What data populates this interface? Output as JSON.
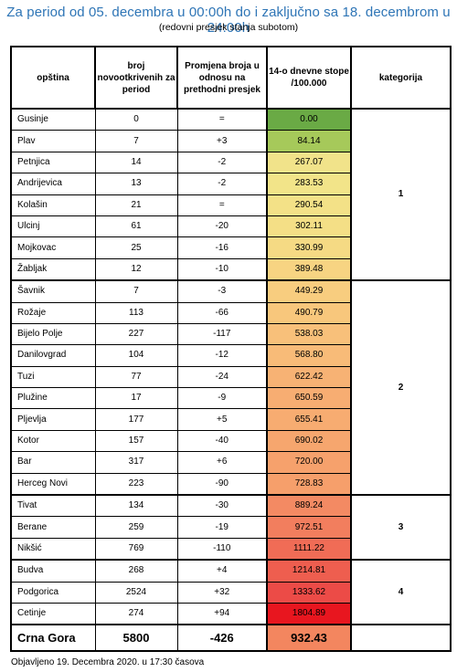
{
  "header": {
    "title": "Za period od 05. decembra u 00:00h do i zaključno sa 18. decembrom u 24:00h",
    "subtitle": "(redovni presjek stanja subotom)"
  },
  "columns": {
    "municipality": "opština",
    "new_cases": "broj novootkrivenih za period",
    "change": "Promjena broja u odnosu na prethodni presjek",
    "rate": "14-o dnevne stope /100.000",
    "category": "kategorija"
  },
  "groups": [
    {
      "category": "1",
      "rows": [
        {
          "name": "Gusinje",
          "cases": "0",
          "change": "=",
          "rate": "0.00",
          "color": "#6aaa45"
        },
        {
          "name": "Plav",
          "cases": "7",
          "change": "+3",
          "rate": "84.14",
          "color": "#a6c95a"
        },
        {
          "name": "Petnjica",
          "cases": "14",
          "change": "-2",
          "rate": "267.07",
          "color": "#f1e38a"
        },
        {
          "name": "Andrijevica",
          "cases": "13",
          "change": "-2",
          "rate": "283.53",
          "color": "#f2e489"
        },
        {
          "name": "Kolašin",
          "cases": "21",
          "change": "=",
          "rate": "290.54",
          "color": "#f3e187"
        },
        {
          "name": "Ulcinj",
          "cases": "61",
          "change": "-20",
          "rate": "302.11",
          "color": "#f4df86"
        },
        {
          "name": "Mojkovac",
          "cases": "25",
          "change": "-16",
          "rate": "330.99",
          "color": "#f5da84"
        },
        {
          "name": "Žabljak",
          "cases": "12",
          "change": "-10",
          "rate": "389.48",
          "color": "#f7d482"
        }
      ]
    },
    {
      "category": "2",
      "rows": [
        {
          "name": "Šavnik",
          "cases": "7",
          "change": "-3",
          "rate": "449.29",
          "color": "#f8cd7f"
        },
        {
          "name": "Rožaje",
          "cases": "113",
          "change": "-66",
          "rate": "490.79",
          "color": "#f8c77c"
        },
        {
          "name": "Bijelo Polje",
          "cases": "227",
          "change": "-117",
          "rate": "538.03",
          "color": "#f8c07a"
        },
        {
          "name": "Danilovgrad",
          "cases": "104",
          "change": "-12",
          "rate": "568.80",
          "color": "#f8bb78"
        },
        {
          "name": "Tuzi",
          "cases": "77",
          "change": "-24",
          "rate": "622.42",
          "color": "#f7b274"
        },
        {
          "name": "Plužine",
          "cases": "17",
          "change": "-9",
          "rate": "650.59",
          "color": "#f7ad72"
        },
        {
          "name": "Pljevlja",
          "cases": "177",
          "change": "+5",
          "rate": "655.41",
          "color": "#f7ac71"
        },
        {
          "name": "Kotor",
          "cases": "157",
          "change": "-40",
          "rate": "690.02",
          "color": "#f6a66e"
        },
        {
          "name": "Bar",
          "cases": "317",
          "change": "+6",
          "rate": "720.00",
          "color": "#f6a16c"
        },
        {
          "name": "Herceg Novi",
          "cases": "223",
          "change": "-90",
          "rate": "728.83",
          "color": "#f69f6b"
        }
      ]
    },
    {
      "category": "3",
      "rows": [
        {
          "name": "Tivat",
          "cases": "134",
          "change": "-30",
          "rate": "889.24",
          "color": "#f38a63"
        },
        {
          "name": "Berane",
          "cases": "259",
          "change": "-19",
          "rate": "972.51",
          "color": "#f27e5e"
        },
        {
          "name": "Nikšić",
          "cases": "769",
          "change": "-110",
          "rate": "1111.22",
          "color": "#f06c56"
        }
      ]
    },
    {
      "category": "4",
      "rows": [
        {
          "name": "Budva",
          "cases": "268",
          "change": "+4",
          "rate": "1214.81",
          "color": "#ee5e4f"
        },
        {
          "name": "Podgorica",
          "cases": "2524",
          "change": "+32",
          "rate": "1333.62",
          "color": "#ec4b47"
        },
        {
          "name": "Cetinje",
          "cases": "274",
          "change": "+94",
          "rate": "1804.89",
          "color": "#e8161f"
        }
      ]
    }
  ],
  "total": {
    "name": "Crna Gora",
    "cases": "5800",
    "change": "-426",
    "rate": "932.43",
    "color": "#f3865f"
  },
  "footer": "Objavljeno 19. Decembra 2020. u 17:30 časova"
}
